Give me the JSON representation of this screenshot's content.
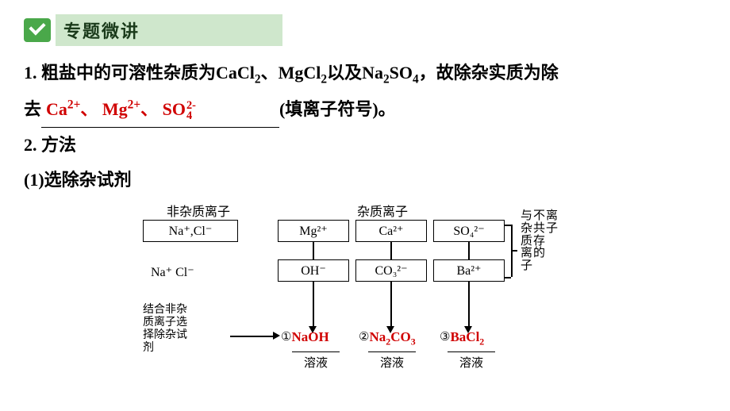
{
  "header": {
    "badge": "专题微讲"
  },
  "q1": {
    "prefix": "1. 粗盐中的可溶性杂质为CaCl",
    "cacl2_sub": "2",
    "sep1": "、",
    "mgcl2": "MgCl",
    "mgcl2_sub": "2",
    "sep2": "以及Na",
    "na2_sub": "2",
    "so4": "SO",
    "so4_sub": "4",
    "tail": "，故除杂实质为除",
    "line2_prefix": "去",
    "ans_ca": "Ca",
    "ans_ca_sup": "2+",
    "ans_sep": "、",
    "ans_mg": "Mg",
    "ans_mg_sup": "2+",
    "ans_so4": "SO",
    "ans_so4_top": "2-",
    "ans_so4_bot": "4",
    "blank_tail": "(填离子符号)。"
  },
  "q2": {
    "title": "2. 方法",
    "sub": "(1)选除杂试剂"
  },
  "diagram": {
    "top_left_label": "非杂质离子",
    "top_right_label": "杂质离子",
    "box_nacl": "Na⁺,Cl⁻",
    "box_mg": "Mg²⁺",
    "box_ca": "Ca²⁺",
    "box_so4": "SO₄²⁻",
    "row2_left": "Na⁺  Cl⁻",
    "box_oh": "OH⁻",
    "box_co3": "CO₃²⁻",
    "box_ba": "Ba²⁺",
    "right_col_a": "与杂质离子",
    "right_col_b": "不共存的",
    "right_col_c": "离子",
    "left_note_l1": "结合非杂",
    "left_note_l2": "质离子选",
    "left_note_l3": "择除杂试",
    "left_note_l4": "剂",
    "circ1": "①",
    "sol1": "NaOH",
    "circ2": "②",
    "sol2": "Na",
    "sol2_sub": "2",
    "sol2b": "CO",
    "sol2b_sub": "3",
    "circ3": "③",
    "sol3": "BaCl",
    "sol3_sub": "2",
    "under": "溶液"
  },
  "colors": {
    "answer": "#d00000",
    "badge_bg": "#cfe7cc",
    "check_bg": "#4aa84a"
  }
}
